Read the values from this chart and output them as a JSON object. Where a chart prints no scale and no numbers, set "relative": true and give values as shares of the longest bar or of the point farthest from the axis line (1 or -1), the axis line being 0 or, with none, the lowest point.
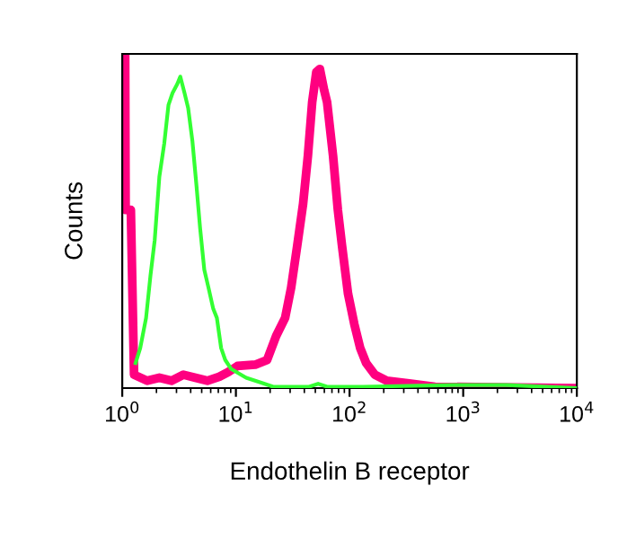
{
  "chart_data": {
    "type": "line",
    "xlabel": "Endothelin B receptor",
    "ylabel": "Counts",
    "relative": true,
    "log": "x",
    "xlim": [
      1,
      10000
    ],
    "xticks": [
      {
        "value": 1,
        "label": "10$^{0}$"
      },
      {
        "value": 10,
        "label": "10$^{1}$"
      },
      {
        "value": 100,
        "label": "10$^{2}$"
      },
      {
        "value": 1000,
        "label": "10$^{3}$"
      },
      {
        "value": 10000,
        "label": "10$^{4}$"
      }
    ],
    "tick_labels": "x",
    "grid": false,
    "legend": false,
    "line_style": "solid",
    "marker": "none",
    "series": [
      {
        "color": "#33ff33",
        "x": [
          1.31,
          1.44,
          1.62,
          1.77,
          1.93,
          2.12,
          2.34,
          2.55,
          2.77,
          3.05,
          3.24,
          3.53,
          3.8,
          4.14,
          4.5,
          4.84,
          5.27,
          5.74,
          6.32,
          6.8,
          7.41,
          8.06,
          9.1,
          12.3,
          16.7,
          21.3,
          44.1,
          52.9,
          63.4,
          131,
          811,
          1680,
          2420,
          10000
        ],
        "values": [
          0.075,
          0.12,
          0.21,
          0.336,
          0.443,
          0.632,
          0.731,
          0.847,
          0.883,
          0.91,
          0.932,
          0.883,
          0.838,
          0.74,
          0.605,
          0.479,
          0.354,
          0.3,
          0.237,
          0.21,
          0.12,
          0.084,
          0.057,
          0.031,
          0.016,
          0.004,
          0.004,
          0.013,
          0.004,
          0.004,
          0.009,
          0.009,
          0.009,
          0
        ]
      },
      {
        "color": "#ff0080",
        "x": [
          1,
          1.06,
          1.07,
          1.19,
          1.27,
          1.66,
          2.12,
          2.71,
          3.45,
          4.4,
          5.6,
          7.14,
          8.57,
          10.3,
          14.8,
          18.8,
          22.6,
          27.1,
          30.6,
          34.6,
          39,
          43,
          46.9,
          51,
          54.8,
          59.7,
          63.4,
          71.6,
          78.9,
          85.9,
          97,
          110,
          124,
          140,
          167,
          213,
          347,
          564,
          10000
        ],
        "values": [
          1,
          1,
          0.533,
          0.533,
          0.04,
          0.022,
          0.031,
          0.022,
          0.04,
          0.031,
          0.022,
          0.034,
          0.048,
          0.066,
          0.07,
          0.084,
          0.156,
          0.21,
          0.3,
          0.425,
          0.551,
          0.695,
          0.856,
          0.946,
          0.955,
          0.892,
          0.856,
          0.695,
          0.533,
          0.425,
          0.282,
          0.192,
          0.12,
          0.075,
          0.04,
          0.022,
          0.013,
          0.004,
          0
        ]
      }
    ]
  }
}
